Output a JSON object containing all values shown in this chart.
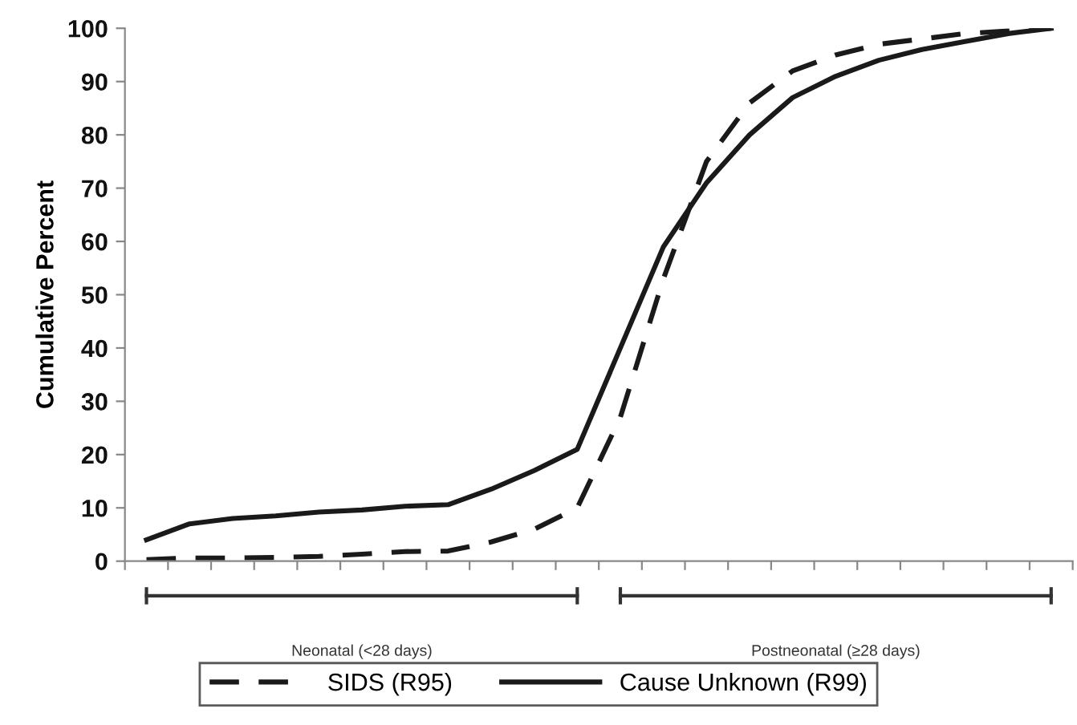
{
  "chart_data": {
    "type": "line",
    "ylabel": "Cumulative Percent",
    "categories": [
      null,
      null,
      null,
      null,
      null,
      null,
      null,
      null,
      null,
      null,
      null,
      null,
      null,
      null,
      null,
      null,
      null,
      null,
      null,
      null,
      null,
      null
    ],
    "series": [
      {
        "name": "SIDS (R95)",
        "color": "#1a1a1a",
        "line_style": "dashed",
        "values": [
          0.3,
          0.6,
          0.6,
          0.7,
          0.9,
          1.3,
          1.8,
          1.9,
          3.6,
          6,
          10,
          27,
          53,
          75,
          86,
          92,
          95,
          97,
          98,
          99,
          99.5,
          100
        ]
      },
      {
        "name": "Cause Unknown (R99)",
        "color": "#1a1a1a",
        "line_style": "solid",
        "values": [
          4,
          7,
          8,
          8.5,
          9.2,
          9.6,
          10.3,
          10.6,
          13.5,
          17,
          21,
          40,
          59,
          71,
          80,
          87,
          91,
          94,
          96,
          97.5,
          99,
          100
        ]
      }
    ],
    "ylim": [
      0,
      100
    ],
    "yticks": [
      0,
      10,
      20,
      30,
      40,
      50,
      60,
      70,
      80,
      90,
      100
    ],
    "grid": false,
    "legend": "bottom",
    "marker": "none",
    "annotations": [
      "Neonatal (<28 days)",
      "Postneonatal (≥28 days)"
    ]
  }
}
